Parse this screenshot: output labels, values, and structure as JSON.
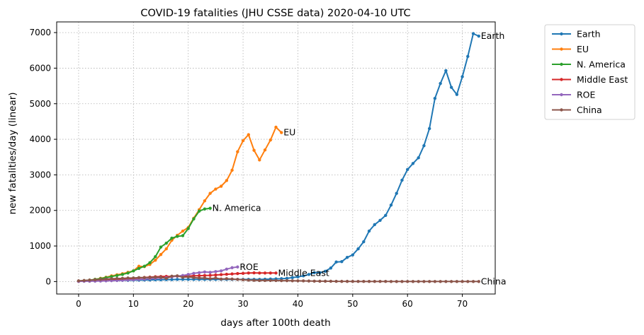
{
  "chart_data": {
    "type": "line",
    "title": "COVID-19 fatalities (JHU CSSE data) 2020-04-10 UTC",
    "xlabel": "days after 100th death",
    "ylabel": "new fatalities/day (linear)",
    "xlim": [
      -4,
      76
    ],
    "ylim": [
      -350,
      7300
    ],
    "xticks": [
      0,
      10,
      20,
      30,
      40,
      50,
      60,
      70
    ],
    "yticks": [
      0,
      1000,
      2000,
      3000,
      4000,
      5000,
      6000,
      7000
    ],
    "grid": true,
    "legend_position": "outside-right",
    "series": [
      {
        "name": "Earth",
        "color": "#1f77b4",
        "end_label": "Earth",
        "x": [
          0,
          1,
          2,
          3,
          4,
          5,
          6,
          7,
          8,
          9,
          10,
          11,
          12,
          13,
          14,
          15,
          16,
          17,
          18,
          19,
          20,
          21,
          22,
          23,
          24,
          25,
          26,
          27,
          28,
          29,
          30,
          31,
          32,
          33,
          34,
          35,
          36,
          37,
          38,
          39,
          40,
          41,
          42,
          43,
          44,
          45,
          46,
          47,
          48,
          49,
          50,
          51,
          52,
          53,
          54,
          55,
          56,
          57,
          58,
          59,
          60,
          61,
          62,
          63,
          64,
          65,
          66,
          67,
          68,
          69,
          70,
          71,
          72,
          73
        ],
        "y": [
          10,
          15,
          20,
          20,
          25,
          25,
          30,
          30,
          35,
          35,
          40,
          40,
          45,
          45,
          50,
          50,
          55,
          55,
          60,
          60,
          60,
          60,
          60,
          60,
          60,
          60,
          60,
          60,
          60,
          60,
          60,
          60,
          60,
          60,
          65,
          70,
          75,
          80,
          90,
          110,
          130,
          160,
          200,
          250,
          250,
          290,
          380,
          550,
          560,
          680,
          750,
          920,
          1120,
          1420,
          1600,
          1720,
          1860,
          2150,
          2480,
          2850,
          3150,
          3320,
          3480,
          3820,
          4300,
          5150,
          5570,
          5930,
          5460,
          5260,
          5760,
          6330,
          6970,
          6900
        ]
      },
      {
        "name": "EU",
        "color": "#ff7f0e",
        "end_label": "EU",
        "x": [
          0,
          1,
          2,
          3,
          4,
          5,
          6,
          7,
          8,
          9,
          10,
          11,
          12,
          13,
          14,
          15,
          16,
          17,
          18,
          19,
          20,
          21,
          22,
          23,
          24,
          25,
          26,
          27,
          28,
          29,
          30,
          31,
          32,
          33,
          34,
          35,
          36,
          37
        ],
        "y": [
          10,
          20,
          40,
          60,
          90,
          120,
          160,
          190,
          220,
          260,
          300,
          430,
          420,
          480,
          600,
          760,
          920,
          1160,
          1300,
          1420,
          1520,
          1780,
          2020,
          2270,
          2480,
          2600,
          2680,
          2840,
          3130,
          3650,
          3960,
          4130,
          3690,
          3420,
          3700,
          3980,
          4340,
          4190
        ]
      },
      {
        "name": "N. America",
        "color": "#2ca02c",
        "end_label": "N. America",
        "x": [
          0,
          1,
          2,
          3,
          4,
          5,
          6,
          7,
          8,
          9,
          10,
          11,
          12,
          13,
          14,
          15,
          16,
          17,
          18,
          19,
          20,
          21,
          22,
          23,
          24
        ],
        "y": [
          15,
          25,
          40,
          60,
          80,
          110,
          140,
          170,
          200,
          240,
          300,
          370,
          430,
          530,
          700,
          970,
          1080,
          1220,
          1270,
          1290,
          1490,
          1760,
          1980,
          2040,
          2060
        ]
      },
      {
        "name": "Middle East",
        "color": "#d62728",
        "end_label": "Middle East",
        "x": [
          0,
          1,
          2,
          3,
          4,
          5,
          6,
          7,
          8,
          9,
          10,
          11,
          12,
          13,
          14,
          15,
          16,
          17,
          18,
          19,
          20,
          21,
          22,
          23,
          24,
          25,
          26,
          27,
          28,
          29,
          30,
          31,
          32,
          33,
          34,
          35,
          36
        ],
        "y": [
          10,
          15,
          20,
          25,
          30,
          40,
          45,
          55,
          65,
          75,
          85,
          100,
          115,
          125,
          135,
          140,
          145,
          145,
          150,
          150,
          155,
          160,
          165,
          170,
          175,
          185,
          195,
          205,
          215,
          225,
          230,
          240,
          245,
          240,
          240,
          240,
          240
        ]
      },
      {
        "name": "ROE",
        "color": "#9467bd",
        "end_label": "ROE",
        "x": [
          0,
          1,
          2,
          3,
          4,
          5,
          6,
          7,
          8,
          9,
          10,
          11,
          12,
          13,
          14,
          15,
          16,
          17,
          18,
          19,
          20,
          21,
          22,
          23,
          24,
          25,
          26,
          27,
          28,
          29
        ],
        "y": [
          5,
          8,
          10,
          12,
          15,
          20,
          25,
          30,
          35,
          45,
          50,
          60,
          70,
          80,
          90,
          100,
          110,
          130,
          150,
          170,
          200,
          230,
          250,
          270,
          260,
          280,
          300,
          350,
          390,
          410
        ]
      },
      {
        "name": "China",
        "color": "#8c564b",
        "end_label": "China",
        "x": [
          0,
          1,
          2,
          3,
          4,
          5,
          6,
          7,
          8,
          9,
          10,
          11,
          12,
          13,
          14,
          15,
          16,
          17,
          18,
          19,
          20,
          21,
          22,
          23,
          24,
          25,
          26,
          27,
          28,
          29,
          30,
          31,
          32,
          33,
          34,
          35,
          36,
          37,
          38,
          39,
          40,
          41,
          42,
          43,
          44,
          45,
          46,
          47,
          48,
          49,
          50,
          51,
          52,
          53,
          54,
          55,
          56,
          57,
          58,
          59,
          60,
          61,
          62,
          63,
          64,
          65,
          66,
          67,
          68,
          69,
          70,
          71,
          72,
          73
        ],
        "y": [
          20,
          30,
          40,
          50,
          60,
          70,
          80,
          85,
          90,
          100,
          100,
          110,
          110,
          115,
          120,
          120,
          90,
          150,
          160,
          120,
          130,
          110,
          100,
          100,
          80,
          100,
          70,
          80,
          70,
          60,
          50,
          40,
          35,
          30,
          30,
          30,
          28,
          26,
          25,
          22,
          20,
          18,
          15,
          12,
          10,
          10,
          8,
          6,
          5,
          5,
          4,
          4,
          3,
          3,
          3,
          3,
          3,
          2,
          2,
          2,
          2,
          2,
          2,
          2,
          2,
          2,
          2,
          2,
          2,
          2,
          2,
          2,
          2,
          2
        ]
      }
    ]
  }
}
